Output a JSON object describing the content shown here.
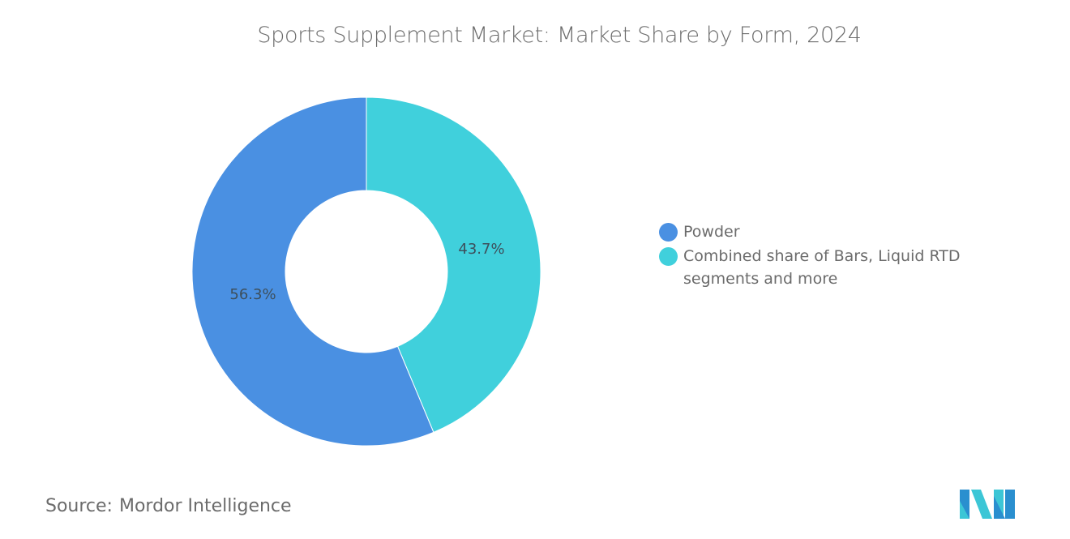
{
  "chart_data": {
    "type": "pie",
    "variant": "donut",
    "title": "Sports Supplement Market: Market Share by Form, 2024",
    "categories": [
      "Powder",
      "Combined share of Bars, Liquid RTD segments and more"
    ],
    "values": [
      56.3,
      43.7
    ],
    "unit": "%",
    "data_labels": [
      "56.3%",
      "43.7%"
    ],
    "colors": [
      "#4a90e2",
      "#40d0dc"
    ],
    "legend_position": "right"
  },
  "title": "Sports Supplement Market: Market Share by Form, 2024",
  "legend": {
    "items": [
      {
        "label": "Powder",
        "color": "#4a90e2"
      },
      {
        "label": "Combined share of Bars, Liquid RTD segments and more",
        "color": "#40d0dc"
      }
    ]
  },
  "labels": {
    "powder": "56.3%",
    "other": "43.7%"
  },
  "footer": {
    "source_key": "Source:",
    "source_value": "Mordor Intelligence"
  },
  "logo": {
    "name": "Mordor Intelligence logo",
    "colors": [
      "#2a8fcf",
      "#3cc6d6"
    ]
  }
}
